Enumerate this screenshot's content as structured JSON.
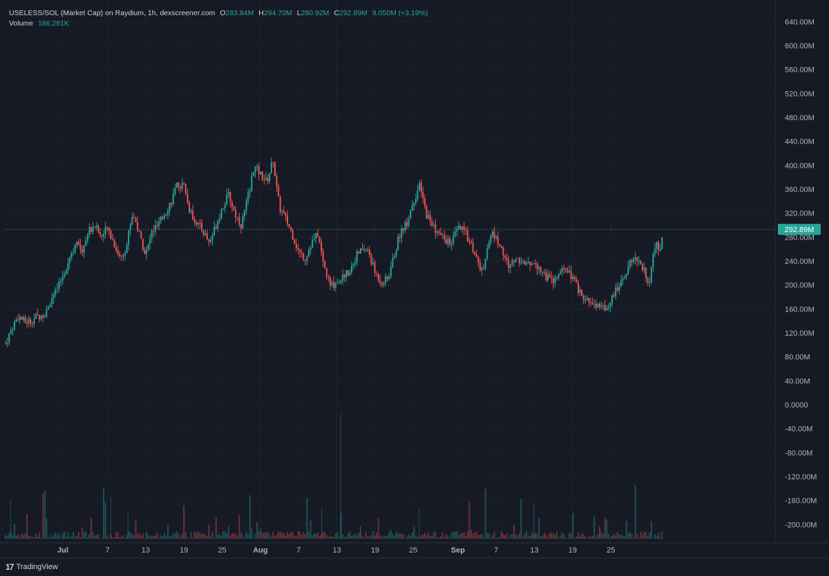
{
  "legend": {
    "title": "USELESS/SOL (Market Cap) on Raydium, 1h, dexscreener.com",
    "open_label": "O",
    "open": "283.84M",
    "high_label": "H",
    "high": "294.70M",
    "low_label": "L",
    "low": "280.92M",
    "close_label": "C",
    "close": "292.89M",
    "change": "9.050M (+3.19%)",
    "volume_label": "Volume",
    "volume": "186.281K"
  },
  "footer": {
    "logo": "17",
    "brand": "TradingView"
  },
  "colors": {
    "background": "#161a25",
    "up": "#26a69a",
    "down": "#ef5350",
    "grid": "#1f2330",
    "text": "#b2b5be",
    "last_price": "#26a69a"
  },
  "chart_data": {
    "type": "candlestick",
    "y_ticks": [
      "640.00M",
      "600.00M",
      "560.00M",
      "520.00M",
      "480.00M",
      "440.00M",
      "400.00M",
      "360.00M",
      "320.00M",
      "280.00M",
      "240.00M",
      "200.00M",
      "160.00M",
      "120.00M",
      "80.00M",
      "40.00M",
      "0.0000",
      "-40.00M",
      "-80.00M",
      "-120.00M",
      "-160.00M",
      "-200.00M"
    ],
    "y_tick_values": [
      640,
      600,
      560,
      520,
      480,
      440,
      400,
      360,
      320,
      280,
      240,
      200,
      160,
      120,
      80,
      40,
      0,
      -40,
      -80,
      -120,
      -160,
      -200
    ],
    "ylim": [
      -210,
      660
    ],
    "x_ticks": [
      {
        "label": "Jul",
        "day": 30,
        "bold": true
      },
      {
        "label": "7",
        "day": 37,
        "bold": false
      },
      {
        "label": "13",
        "day": 43,
        "bold": false
      },
      {
        "label": "19",
        "day": 49,
        "bold": false
      },
      {
        "label": "25",
        "day": 55,
        "bold": false
      },
      {
        "label": "Aug",
        "day": 61,
        "bold": true
      },
      {
        "label": "7",
        "day": 67,
        "bold": false
      },
      {
        "label": "13",
        "day": 73,
        "bold": false
      },
      {
        "label": "19",
        "day": 79,
        "bold": false
      },
      {
        "label": "25",
        "day": 85,
        "bold": false
      },
      {
        "label": "Sep",
        "day": 92,
        "bold": true
      },
      {
        "label": "7",
        "day": 98,
        "bold": false
      },
      {
        "label": "13",
        "day": 104,
        "bold": false
      },
      {
        "label": "19",
        "day": 110,
        "bold": false
      },
      {
        "label": "25",
        "day": 116,
        "bold": false
      }
    ],
    "xlim": [
      21,
      124
    ],
    "last_price": 292.89,
    "last_price_label": "292.89M",
    "price_path": [
      [
        21.0,
        102
      ],
      [
        22.0,
        128
      ],
      [
        23.0,
        148
      ],
      [
        24.0,
        138
      ],
      [
        25.0,
        140
      ],
      [
        26.0,
        148
      ],
      [
        27.0,
        150
      ],
      [
        28.0,
        172
      ],
      [
        29.0,
        190
      ],
      [
        30.0,
        215
      ],
      [
        31.0,
        245
      ],
      [
        32.0,
        270
      ],
      [
        33.0,
        258
      ],
      [
        34.0,
        290
      ],
      [
        35.0,
        300
      ],
      [
        36.0,
        280
      ],
      [
        37.0,
        295
      ],
      [
        38.0,
        270
      ],
      [
        39.0,
        245
      ],
      [
        40.0,
        265
      ],
      [
        40.5,
        300
      ],
      [
        41.0,
        320
      ],
      [
        42.0,
        285
      ],
      [
        43.0,
        250
      ],
      [
        44.0,
        290
      ],
      [
        45.0,
        300
      ],
      [
        46.0,
        320
      ],
      [
        47.0,
        340
      ],
      [
        48.0,
        368
      ],
      [
        49.0,
        365
      ],
      [
        49.5,
        340
      ],
      [
        50.0,
        320
      ],
      [
        51.0,
        305
      ],
      [
        52.0,
        290
      ],
      [
        53.0,
        270
      ],
      [
        54.0,
        300
      ],
      [
        55.0,
        330
      ],
      [
        56.0,
        350
      ],
      [
        57.0,
        320
      ],
      [
        58.0,
        300
      ],
      [
        59.0,
        345
      ],
      [
        60.0,
        398
      ],
      [
        61.0,
        385
      ],
      [
        62.0,
        372
      ],
      [
        63.0,
        410
      ],
      [
        63.5,
        365
      ],
      [
        64.0,
        330
      ],
      [
        65.0,
        310
      ],
      [
        66.0,
        285
      ],
      [
        67.0,
        255
      ],
      [
        68.0,
        245
      ],
      [
        69.0,
        270
      ],
      [
        70.0,
        285
      ],
      [
        71.0,
        230
      ],
      [
        72.0,
        198
      ],
      [
        73.0,
        205
      ],
      [
        74.0,
        215
      ],
      [
        75.0,
        225
      ],
      [
        76.0,
        248
      ],
      [
        77.0,
        260
      ],
      [
        78.0,
        255
      ],
      [
        79.0,
        220
      ],
      [
        80.0,
        205
      ],
      [
        81.0,
        210
      ],
      [
        82.0,
        250
      ],
      [
        83.0,
        290
      ],
      [
        84.0,
        305
      ],
      [
        85.0,
        340
      ],
      [
        86.0,
        365
      ],
      [
        87.0,
        320
      ],
      [
        88.0,
        300
      ],
      [
        89.0,
        285
      ],
      [
        90.0,
        275
      ],
      [
        91.0,
        270
      ],
      [
        92.0,
        295
      ],
      [
        93.0,
        290
      ],
      [
        94.0,
        270
      ],
      [
        95.0,
        240
      ],
      [
        96.0,
        218
      ],
      [
        97.0,
        285
      ],
      [
        98.0,
        280
      ],
      [
        99.0,
        255
      ],
      [
        100.0,
        230
      ],
      [
        101.0,
        245
      ],
      [
        102.0,
        240
      ],
      [
        103.0,
        232
      ],
      [
        104.0,
        240
      ],
      [
        105.0,
        225
      ],
      [
        106.0,
        212
      ],
      [
        107.0,
        205
      ],
      [
        108.0,
        220
      ],
      [
        109.0,
        225
      ],
      [
        110.0,
        210
      ],
      [
        111.0,
        190
      ],
      [
        112.0,
        172
      ],
      [
        113.0,
        170
      ],
      [
        114.0,
        165
      ],
      [
        115.0,
        158
      ],
      [
        116.0,
        175
      ],
      [
        117.0,
        195
      ],
      [
        118.0,
        215
      ],
      [
        119.0,
        235
      ],
      [
        120.0,
        245
      ],
      [
        121.0,
        228
      ],
      [
        122.0,
        205
      ],
      [
        123.0,
        270
      ],
      [
        123.6,
        255
      ],
      [
        124.2,
        292.89
      ]
    ],
    "volume_scale_max": 100
  }
}
